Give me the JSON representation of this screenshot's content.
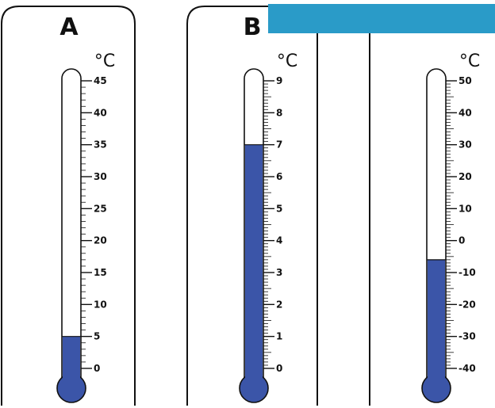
{
  "colors": {
    "mercury": "#3b55a8",
    "banner": "#2a9bc8",
    "frame": "#111111"
  },
  "thermometers": [
    {
      "label": "A",
      "unit": "°C",
      "min": 0,
      "max": 45,
      "major_step": 5,
      "minor_per_major": 5,
      "reading": 5,
      "tick_labels": [
        "0",
        "5",
        "10",
        "15",
        "20",
        "25",
        "30",
        "35",
        "40",
        "45"
      ]
    },
    {
      "label": "B",
      "unit": "°C",
      "min": 0,
      "max": 9,
      "major_step": 1,
      "minor_per_major": 10,
      "reading": 7,
      "tick_labels": [
        "0",
        "1",
        "2",
        "3",
        "4",
        "5",
        "6",
        "7",
        "8",
        "9"
      ]
    },
    {
      "label": "",
      "unit": "°C",
      "min": -40,
      "max": 50,
      "major_step": 10,
      "minor_per_major": 10,
      "reading": -6,
      "tick_labels": [
        "-40",
        "-30",
        "-20",
        "-10",
        "0",
        "10",
        "20",
        "30",
        "40",
        "50"
      ]
    }
  ]
}
